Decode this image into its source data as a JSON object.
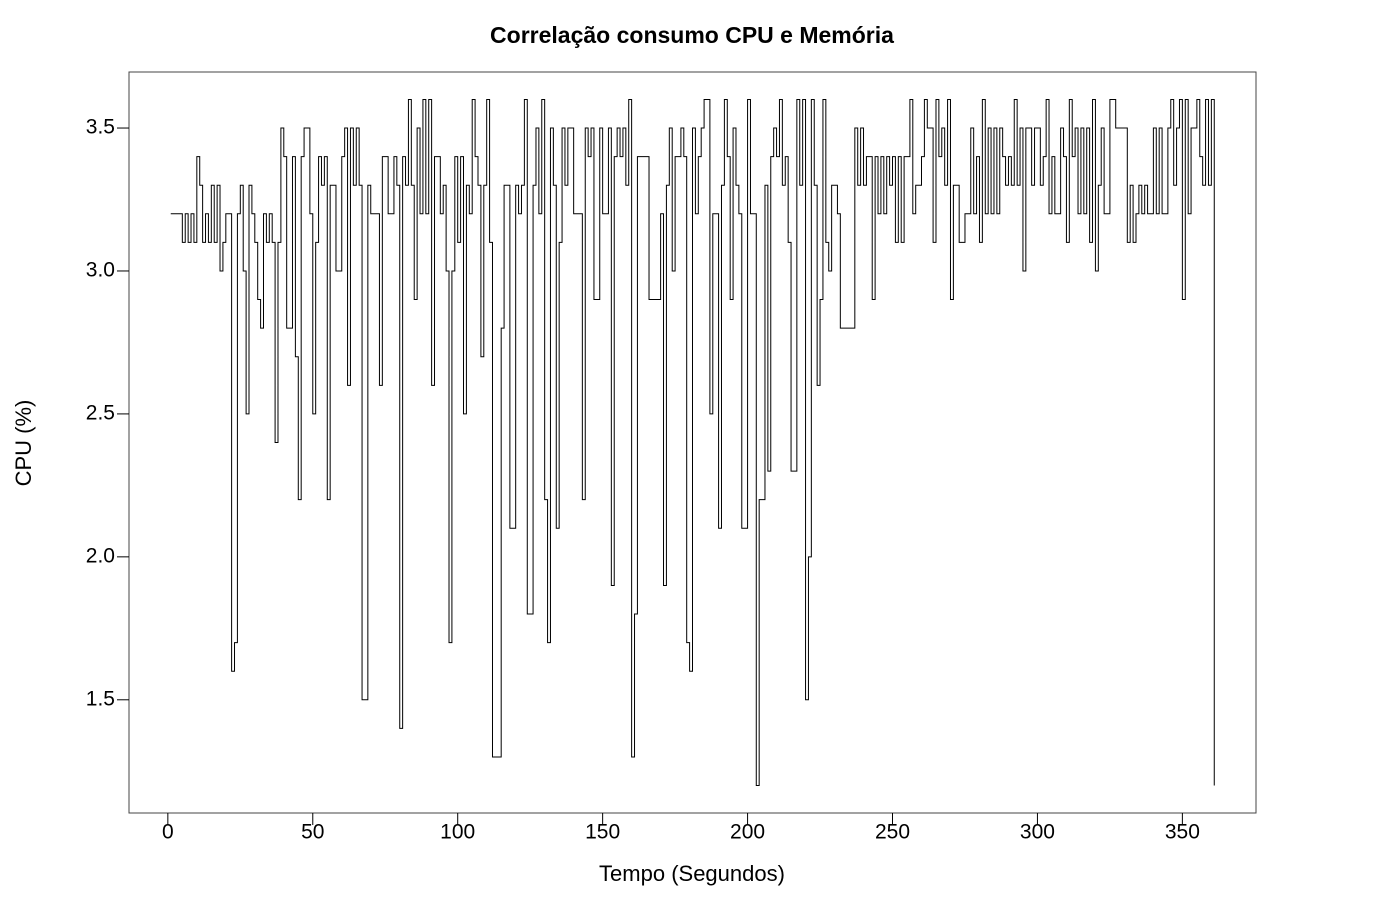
{
  "chart_data": {
    "type": "line",
    "drawstyle": "steps-post",
    "color": "#000000",
    "title": "Correlação consumo CPU e Memória",
    "x_label": "Tempo (Segundos)",
    "y_label": "CPU (%)",
    "xlim": [
      -13.4,
      375.4
    ],
    "ylim": [
      1.104,
      3.696
    ],
    "xticks": [
      0,
      50,
      100,
      150,
      200,
      250,
      300,
      350
    ],
    "yticks": [
      1.5,
      {
        "value": 2,
        "label": "2.0"
      },
      2.5,
      {
        "value": 3,
        "label": "3.0"
      },
      3.5
    ],
    "grid": false,
    "x": [
      1,
      2,
      3,
      4,
      5,
      6,
      7,
      8,
      9,
      10,
      11,
      12,
      13,
      14,
      15,
      16,
      17,
      18,
      19,
      20,
      21,
      22,
      23,
      24,
      25,
      26,
      27,
      28,
      29,
      30,
      31,
      32,
      33,
      34,
      35,
      36,
      37,
      38,
      39,
      40,
      41,
      42,
      43,
      44,
      45,
      46,
      47,
      48,
      49,
      50,
      51,
      52,
      53,
      54,
      55,
      56,
      57,
      58,
      59,
      60,
      61,
      62,
      63,
      64,
      65,
      66,
      67,
      68,
      69,
      70,
      71,
      72,
      73,
      74,
      75,
      76,
      77,
      78,
      79,
      80,
      81,
      82,
      83,
      84,
      85,
      86,
      87,
      88,
      89,
      90,
      91,
      92,
      93,
      94,
      95,
      96,
      97,
      98,
      99,
      100,
      101,
      102,
      103,
      104,
      105,
      106,
      107,
      108,
      109,
      110,
      111,
      112,
      113,
      114,
      115,
      116,
      117,
      118,
      119,
      120,
      121,
      122,
      123,
      124,
      125,
      126,
      127,
      128,
      129,
      130,
      131,
      132,
      133,
      134,
      135,
      136,
      137,
      138,
      139,
      140,
      141,
      142,
      143,
      144,
      145,
      146,
      147,
      148,
      149,
      150,
      151,
      152,
      153,
      154,
      155,
      156,
      157,
      158,
      159,
      160,
      161,
      162,
      163,
      164,
      165,
      166,
      167,
      168,
      169,
      170,
      171,
      172,
      173,
      174,
      175,
      176,
      177,
      178,
      179,
      180,
      181,
      182,
      183,
      184,
      185,
      186,
      187,
      188,
      189,
      190,
      191,
      192,
      193,
      194,
      195,
      196,
      197,
      198,
      199,
      200,
      201,
      202,
      203,
      204,
      205,
      206,
      207,
      208,
      209,
      210,
      211,
      212,
      213,
      214,
      215,
      216,
      217,
      218,
      219,
      220,
      221,
      222,
      223,
      224,
      225,
      226,
      227,
      228,
      229,
      230,
      231,
      232,
      233,
      234,
      235,
      236,
      237,
      238,
      239,
      240,
      241,
      242,
      243,
      244,
      245,
      246,
      247,
      248,
      249,
      250,
      251,
      252,
      253,
      254,
      255,
      256,
      257,
      258,
      259,
      260,
      261,
      262,
      263,
      264,
      265,
      266,
      267,
      268,
      269,
      270,
      271,
      272,
      273,
      274,
      275,
      276,
      277,
      278,
      279,
      280,
      281,
      282,
      283,
      284,
      285,
      286,
      287,
      288,
      289,
      290,
      291,
      292,
      293,
      294,
      295,
      296,
      297,
      298,
      299,
      300,
      301,
      302,
      303,
      304,
      305,
      306,
      307,
      308,
      309,
      310,
      311,
      312,
      313,
      314,
      315,
      316,
      317,
      318,
      319,
      320,
      321,
      322,
      323,
      324,
      325,
      326,
      327,
      328,
      329,
      330,
      331,
      332,
      333,
      334,
      335,
      336,
      337,
      338,
      339,
      340,
      341,
      342,
      343,
      344,
      345,
      346,
      347,
      348,
      349,
      350,
      351,
      352,
      353,
      354,
      355,
      356,
      357,
      358,
      359,
      360,
      361
    ],
    "values": [
      3.2,
      3.2,
      3.2,
      3.2,
      3.1,
      3.2,
      3.1,
      3.2,
      3.1,
      3.4,
      3.3,
      3.1,
      3.2,
      3.1,
      3.3,
      3.1,
      3.3,
      3.0,
      3.1,
      3.2,
      3.2,
      1.6,
      1.7,
      3.2,
      3.3,
      3.0,
      2.5,
      3.3,
      3.2,
      3.1,
      2.9,
      2.8,
      3.2,
      3.1,
      3.2,
      3.1,
      2.4,
      3.1,
      3.5,
      3.4,
      2.8,
      2.8,
      3.4,
      2.7,
      2.2,
      3.4,
      3.5,
      3.5,
      3.2,
      2.5,
      3.1,
      3.4,
      3.3,
      3.4,
      2.2,
      3.3,
      3.3,
      3.0,
      3.0,
      3.4,
      3.5,
      2.6,
      3.5,
      3.3,
      3.5,
      3.3,
      1.5,
      1.5,
      3.3,
      3.2,
      3.2,
      3.2,
      2.6,
      3.4,
      3.4,
      3.2,
      3.2,
      3.4,
      3.3,
      1.4,
      3.4,
      3.3,
      3.6,
      3.3,
      2.9,
      3.5,
      3.2,
      3.6,
      3.2,
      3.6,
      2.6,
      3.4,
      3.4,
      3.2,
      3.3,
      3.0,
      1.7,
      3.0,
      3.4,
      3.1,
      3.4,
      2.5,
      3.3,
      3.2,
      3.6,
      3.4,
      3.3,
      2.7,
      3.3,
      3.6,
      3.1,
      1.3,
      1.3,
      1.3,
      2.8,
      3.3,
      3.3,
      2.1,
      2.1,
      3.3,
      3.2,
      3.3,
      3.6,
      1.8,
      1.8,
      3.3,
      3.5,
      3.2,
      3.6,
      2.2,
      1.7,
      3.5,
      3.3,
      2.1,
      3.1,
      3.5,
      3.3,
      3.5,
      3.5,
      3.2,
      3.2,
      3.2,
      2.2,
      3.5,
      3.4,
      3.5,
      2.9,
      2.9,
      3.5,
      3.2,
      3.2,
      3.5,
      1.9,
      3.4,
      3.5,
      3.4,
      3.5,
      3.3,
      3.6,
      1.3,
      1.8,
      3.4,
      3.4,
      3.4,
      3.4,
      2.9,
      2.9,
      2.9,
      2.9,
      3.2,
      1.9,
      3.3,
      3.5,
      3.0,
      3.4,
      3.4,
      3.5,
      3.4,
      1.7,
      1.6,
      3.5,
      3.2,
      3.4,
      3.5,
      3.6,
      3.6,
      2.5,
      3.2,
      3.2,
      2.1,
      3.3,
      3.6,
      3.4,
      2.9,
      3.5,
      3.3,
      3.2,
      2.1,
      2.1,
      3.6,
      3.2,
      3.2,
      1.2,
      2.2,
      2.2,
      3.3,
      2.3,
      3.4,
      3.5,
      3.4,
      3.6,
      3.3,
      3.4,
      3.1,
      2.3,
      2.3,
      3.6,
      3.3,
      3.6,
      1.5,
      2.0,
      3.6,
      3.3,
      2.6,
      2.9,
      3.6,
      3.1,
      3.0,
      3.3,
      3.3,
      3.2,
      2.8,
      2.8,
      2.8,
      2.8,
      2.8,
      3.5,
      3.3,
      3.5,
      3.3,
      3.4,
      3.4,
      2.9,
      3.4,
      3.2,
      3.4,
      3.2,
      3.4,
      3.3,
      3.4,
      3.1,
      3.4,
      3.1,
      3.4,
      3.4,
      3.6,
      3.2,
      3.3,
      3.3,
      3.4,
      3.6,
      3.5,
      3.5,
      3.1,
      3.6,
      3.4,
      3.5,
      3.3,
      3.6,
      2.9,
      3.3,
      3.3,
      3.1,
      3.1,
      3.2,
      3.2,
      3.5,
      3.2,
      3.4,
      3.1,
      3.6,
      3.2,
      3.5,
      3.2,
      3.5,
      3.2,
      3.5,
      3.4,
      3.3,
      3.4,
      3.3,
      3.6,
      3.3,
      3.5,
      3.0,
      3.5,
      3.5,
      3.3,
      3.5,
      3.5,
      3.3,
      3.4,
      3.6,
      3.2,
      3.4,
      3.2,
      3.2,
      3.5,
      3.4,
      3.1,
      3.6,
      3.4,
      3.5,
      3.2,
      3.5,
      3.2,
      3.5,
      3.1,
      3.6,
      3.0,
      3.3,
      3.5,
      3.2,
      3.2,
      3.6,
      3.6,
      3.5,
      3.5,
      3.5,
      3.5,
      3.1,
      3.3,
      3.1,
      3.2,
      3.3,
      3.2,
      3.3,
      3.2,
      3.2,
      3.5,
      3.2,
      3.5,
      3.2,
      3.2,
      3.5,
      3.6,
      3.3,
      3.5,
      3.6,
      2.9,
      3.6,
      3.2,
      3.5,
      3.5,
      3.6,
      3.4,
      3.3,
      3.6,
      3.3,
      3.6,
      1.2
    ]
  }
}
